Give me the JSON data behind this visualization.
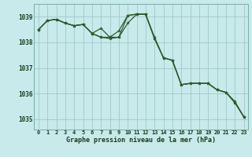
{
  "title": "Graphe pression niveau de la mer (hPa)",
  "background_color": "#c8eaea",
  "plot_bg_color": "#c8eaea",
  "line_color": "#2d5a2d",
  "grid_color": "#a0c8c8",
  "text_color": "#1a3a1a",
  "xlim": [
    -0.5,
    23.5
  ],
  "ylim": [
    1034.6,
    1039.5
  ],
  "yticks": [
    1035,
    1036,
    1037,
    1038,
    1039
  ],
  "xticks": [
    0,
    1,
    2,
    3,
    4,
    5,
    6,
    7,
    8,
    9,
    10,
    11,
    12,
    13,
    14,
    15,
    16,
    17,
    18,
    19,
    20,
    21,
    22,
    23
  ],
  "series1": [
    1038.5,
    1038.85,
    1038.9,
    1038.75,
    1038.65,
    1038.7,
    1038.35,
    1038.55,
    1038.2,
    1038.2,
    1039.05,
    1039.1,
    1039.1,
    1038.2,
    1037.4,
    1037.3,
    1036.35,
    1036.4,
    1036.4,
    1036.4,
    1036.15,
    1036.05,
    1035.7,
    1035.1
  ],
  "series2": [
    1038.5,
    1038.85,
    1038.9,
    1038.75,
    1038.65,
    1038.7,
    1038.35,
    1038.2,
    1038.2,
    1038.45,
    1039.05,
    1039.1,
    1039.1,
    1038.15,
    1037.4,
    1037.3,
    1036.35,
    1036.4,
    1036.4,
    1036.4,
    1036.15,
    1036.05,
    1035.65,
    1035.1
  ],
  "series3": [
    1038.5,
    1038.85,
    1038.9,
    1038.75,
    1038.65,
    1038.7,
    1038.35,
    1038.2,
    1038.15,
    1038.2,
    1038.75,
    1039.1,
    1039.1,
    1038.15,
    1037.4,
    1037.3,
    1036.35,
    1036.4,
    1036.4,
    1036.4,
    1036.15,
    1036.05,
    1035.65,
    1035.1
  ],
  "figsize": [
    3.2,
    2.0
  ],
  "dpi": 100
}
